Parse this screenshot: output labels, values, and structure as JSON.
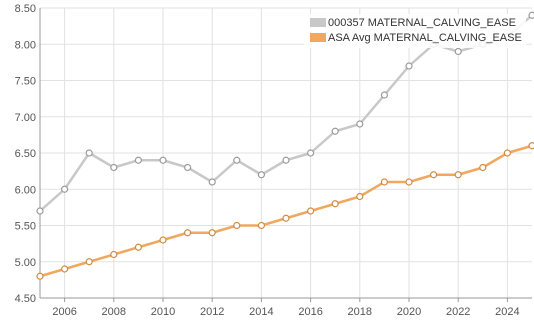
{
  "chart_data": {
    "type": "line",
    "x": [
      2005,
      2006,
      2007,
      2008,
      2009,
      2010,
      2011,
      2012,
      2013,
      2014,
      2015,
      2016,
      2017,
      2018,
      2019,
      2020,
      2021,
      2022,
      2023,
      2024,
      2025
    ],
    "series": [
      {
        "name": "000357 MATERNAL_CALVING_EASE",
        "color": "#c8c8c8",
        "marker_fill": "#ffffff",
        "values": [
          5.7,
          6.0,
          6.5,
          6.3,
          6.4,
          6.4,
          6.3,
          6.1,
          6.4,
          6.2,
          6.4,
          6.5,
          6.8,
          6.9,
          7.3,
          7.7,
          8.0,
          7.9,
          8.0,
          8.1,
          8.4
        ]
      },
      {
        "name": "ASA Avg MATERNAL_CALVING_EASE",
        "color": "#f0a860",
        "marker_fill": "#ffffff",
        "values": [
          4.8,
          4.9,
          5.0,
          5.1,
          5.2,
          5.3,
          5.4,
          5.4,
          5.5,
          5.5,
          5.6,
          5.7,
          5.8,
          5.9,
          6.1,
          6.1,
          6.2,
          6.2,
          6.3,
          6.5,
          6.6
        ]
      }
    ],
    "ylim": [
      4.5,
      8.5
    ],
    "yticks": [
      "4.50",
      "5.00",
      "5.50",
      "6.00",
      "6.50",
      "7.00",
      "7.50",
      "8.00",
      "8.50"
    ],
    "xticks": [
      "2006",
      "2008",
      "2010",
      "2012",
      "2014",
      "2016",
      "2018",
      "2020",
      "2022",
      "2024"
    ],
    "grid": true,
    "legend_position": "top-right",
    "title": "",
    "xlabel": "",
    "ylabel": ""
  }
}
